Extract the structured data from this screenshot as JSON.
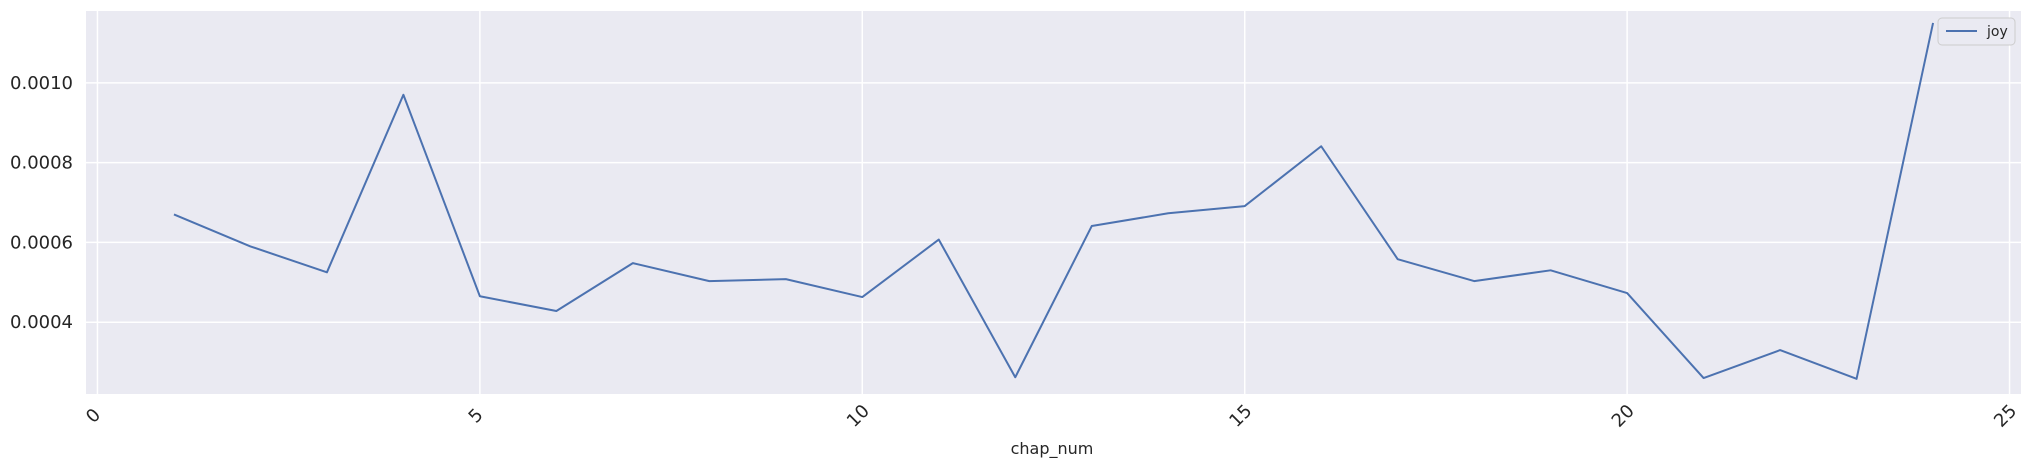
{
  "chart_data": {
    "type": "line",
    "title": "",
    "xlabel": "chap_num",
    "ylabel": "",
    "xlim": [
      -0.15,
      25.15
    ],
    "ylim": [
      0.00022,
      0.00118
    ],
    "xticks": [
      0,
      5,
      10,
      15,
      20,
      25
    ],
    "yticks": [
      0.0004,
      0.0006,
      0.0008,
      0.001
    ],
    "xtick_labels": [
      "0",
      "5",
      "10",
      "15",
      "20",
      "25"
    ],
    "ytick_labels": [
      "0.0004",
      "0.0006",
      "0.0008",
      "0.0010"
    ],
    "grid": true,
    "legend_position": "top-right",
    "background_color": "#eaeaf2",
    "grid_color": "#ffffff",
    "series": [
      {
        "name": "joy",
        "color": "#4c72b0",
        "x": [
          1,
          2,
          3,
          4,
          5,
          6,
          7,
          8,
          9,
          10,
          11,
          12,
          13,
          14,
          15,
          16,
          17,
          18,
          19,
          20,
          21,
          22,
          23,
          24
        ],
        "y": [
          0.00067,
          0.00059,
          0.000525,
          0.00097,
          0.000465,
          0.000428,
          0.000548,
          0.000503,
          0.000508,
          0.000463,
          0.000607,
          0.000262,
          0.000641,
          0.000673,
          0.000691,
          0.000841,
          0.000558,
          0.000503,
          0.00053,
          0.000473,
          0.00026,
          0.00033,
          0.000258,
          0.00115
        ]
      }
    ]
  }
}
